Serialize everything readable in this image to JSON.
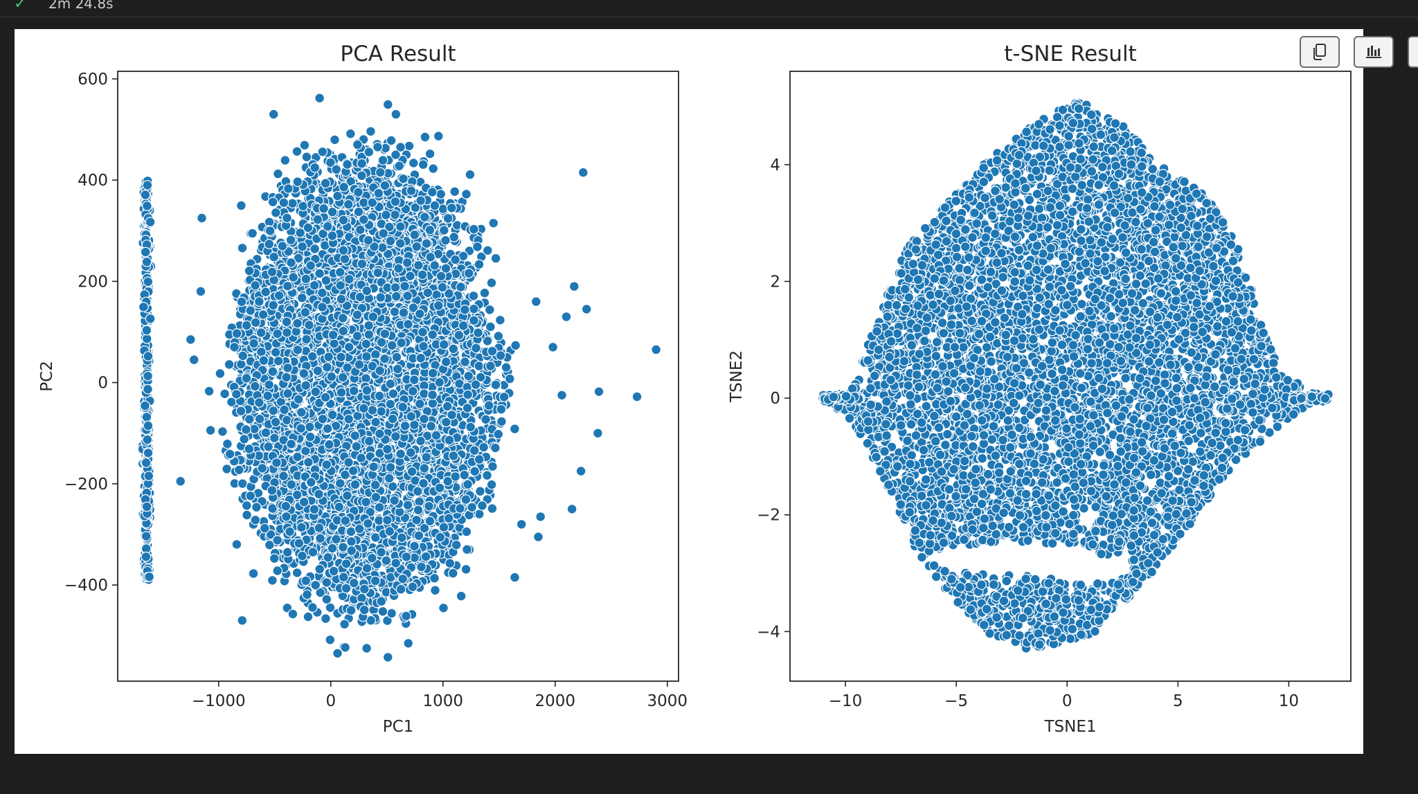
{
  "status": {
    "icon": "check-icon",
    "elapsed": "2m 24.8s"
  },
  "toolbar": [
    {
      "name": "copy-icon"
    },
    {
      "name": "chart-icon"
    }
  ],
  "colors": {
    "marker": "#1f77b4",
    "marker_edge": "#ffffff",
    "background": "#ffffff",
    "app_bg": "#1e1e1e"
  },
  "chart_data": [
    {
      "type": "scatter",
      "title": "PCA Result",
      "xlabel": "PC1",
      "ylabel": "PC2",
      "xlim": [
        -1900,
        3100
      ],
      "ylim": [
        -590,
        615
      ],
      "xticks": [
        -1000,
        0,
        1000,
        2000,
        3000
      ],
      "xtick_labels": [
        "−1000",
        "0",
        "1000",
        "2000",
        "3000"
      ],
      "yticks": [
        600,
        400,
        200,
        0,
        -200,
        -400
      ],
      "ytick_labels": [
        "600",
        "400",
        "200",
        "0",
        "−200",
        "−400"
      ],
      "grid": false,
      "clusters": [
        {
          "shape": "ellipse",
          "cx": 300,
          "cy": 0,
          "rx": 1250,
          "ry": 430,
          "count": 5200
        },
        {
          "shape": "column",
          "x": -1640,
          "y_range": [
            -390,
            400
          ],
          "count": 420
        }
      ],
      "outliers": [
        [
          2900,
          65
        ],
        [
          2730,
          -28
        ],
        [
          2390,
          -18
        ],
        [
          2380,
          -100
        ],
        [
          2250,
          415
        ],
        [
          2280,
          145
        ],
        [
          2170,
          190
        ],
        [
          2230,
          -175
        ],
        [
          2150,
          -250
        ],
        [
          2060,
          -25
        ],
        [
          1980,
          70
        ],
        [
          1830,
          160
        ],
        [
          1870,
          -265
        ],
        [
          1850,
          -305
        ],
        [
          1700,
          -280
        ],
        [
          1640,
          -385
        ],
        [
          2100,
          130
        ],
        [
          1450,
          315
        ],
        [
          960,
          487
        ],
        [
          840,
          485
        ],
        [
          580,
          530
        ],
        [
          -510,
          530
        ],
        [
          -100,
          562
        ],
        [
          -1340,
          -195
        ],
        [
          -1220,
          45
        ],
        [
          -790,
          -470
        ],
        [
          60,
          -535
        ],
        [
          320,
          -525
        ],
        [
          -1150,
          325
        ],
        [
          -1250,
          85
        ],
        [
          -1160,
          180
        ]
      ]
    },
    {
      "type": "scatter",
      "title": "t-SNE Result",
      "xlabel": "TSNE1",
      "ylabel": "TSNE2",
      "xlim": [
        -12.5,
        12.8
      ],
      "ylim": [
        -4.85,
        5.6
      ],
      "xticks": [
        -10,
        -5,
        0,
        5,
        10
      ],
      "xtick_labels": [
        "−10",
        "−5",
        "0",
        "5",
        "10"
      ],
      "yticks": [
        4,
        2,
        0,
        -2,
        -4
      ],
      "ytick_labels": [
        "4",
        "2",
        "0",
        "−2",
        "−4"
      ],
      "grid": false,
      "outline": [
        [
          -11.2,
          0.05
        ],
        [
          -9.8,
          0.1
        ],
        [
          -8.5,
          1.4
        ],
        [
          -7.2,
          2.6
        ],
        [
          -5.5,
          3.3
        ],
        [
          -3.5,
          4.1
        ],
        [
          -1.5,
          4.7
        ],
        [
          0.5,
          5.1
        ],
        [
          2.2,
          4.8
        ],
        [
          4.2,
          4.0
        ],
        [
          6.2,
          3.5
        ],
        [
          7.8,
          2.6
        ],
        [
          8.8,
          1.2
        ],
        [
          9.8,
          0.4
        ],
        [
          11.8,
          0.0
        ],
        [
          9.5,
          -0.5
        ],
        [
          7.6,
          -1.1
        ],
        [
          5.5,
          -2.2
        ],
        [
          3.8,
          -3.0
        ],
        [
          2.3,
          -3.6
        ],
        [
          1.0,
          -4.1
        ],
        [
          -1.8,
          -4.3
        ],
        [
          -3.5,
          -4.05
        ],
        [
          -5.5,
          -3.3
        ],
        [
          -7.0,
          -2.5
        ],
        [
          -8.5,
          -1.2
        ],
        [
          -9.5,
          -0.5
        ]
      ],
      "count": 6200,
      "gaps": [
        {
          "cx": -2.3,
          "cy": -2.75,
          "rx": 4.0,
          "ry": 0.28
        },
        {
          "cx": 1.0,
          "cy": -2.95,
          "rx": 2.0,
          "ry": 0.22
        },
        {
          "cx": -7.7,
          "cy": -0.7,
          "rx": 0.25,
          "ry": 0.25
        }
      ]
    }
  ]
}
